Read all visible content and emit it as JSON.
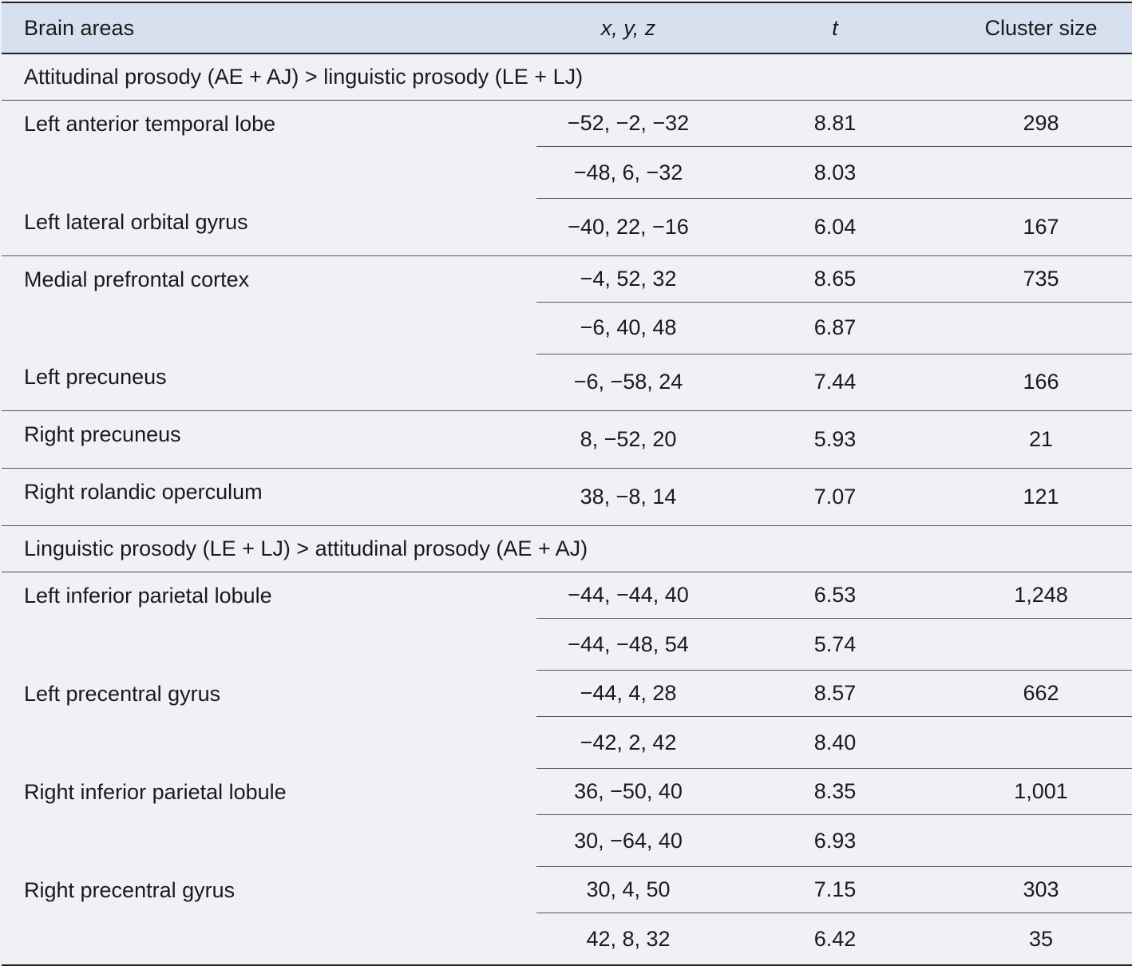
{
  "header": {
    "area": "Brain areas",
    "coords": "x, y, z",
    "t": "t",
    "cluster": "Cluster size"
  },
  "sections": [
    {
      "title": "Attitudinal prosody (AE + AJ) > linguistic prosody (LE + LJ)",
      "rows": [
        {
          "area": "Left anterior temporal lobe",
          "peaks": [
            {
              "coords": "−52, −2, −32",
              "t": "8.81",
              "cluster": "298"
            },
            {
              "coords": "−48, 6, −32",
              "t": "8.03",
              "cluster": ""
            }
          ]
        },
        {
          "area": "Left lateral orbital gyrus",
          "peaks": [
            {
              "coords": "−40, 22, −16",
              "t": "6.04",
              "cluster": "167"
            }
          ]
        },
        {
          "area": "Medial prefrontal cortex",
          "peaks": [
            {
              "coords": "−4, 52, 32",
              "t": "8.65",
              "cluster": "735"
            },
            {
              "coords": "−6, 40, 48",
              "t": "6.87",
              "cluster": ""
            }
          ]
        },
        {
          "area": "Left precuneus",
          "peaks": [
            {
              "coords": "−6, −58, 24",
              "t": "7.44",
              "cluster": "166"
            }
          ]
        },
        {
          "area": "Right precuneus",
          "peaks": [
            {
              "coords": "8, −52, 20",
              "t": "5.93",
              "cluster": "21"
            }
          ]
        },
        {
          "area": "Right rolandic operculum",
          "peaks": [
            {
              "coords": "38, −8, 14",
              "t": "7.07",
              "cluster": "121"
            }
          ]
        }
      ]
    },
    {
      "title": "Linguistic prosody (LE + LJ) > attitudinal prosody (AE + AJ)",
      "rows": [
        {
          "area": "Left inferior parietal lobule",
          "peaks": [
            {
              "coords": "−44, −44, 40",
              "t": "6.53",
              "cluster": "1,248"
            },
            {
              "coords": "−44, −48, 54",
              "t": "5.74",
              "cluster": ""
            }
          ]
        },
        {
          "area": "Left precentral gyrus",
          "peaks": [
            {
              "coords": "−44, 4, 28",
              "t": "8.57",
              "cluster": "662"
            },
            {
              "coords": "−42, 2, 42",
              "t": "8.40",
              "cluster": ""
            }
          ]
        },
        {
          "area": "Right inferior parietal lobule",
          "peaks": [
            {
              "coords": "36, −50, 40",
              "t": "8.35",
              "cluster": "1,001"
            },
            {
              "coords": "30, −64, 40",
              "t": "6.93",
              "cluster": ""
            }
          ]
        },
        {
          "area": "Right precentral gyrus",
          "peaks": [
            {
              "coords": "30, 4, 50",
              "t": "7.15",
              "cluster": "303"
            },
            {
              "coords": "42, 8, 32",
              "t": "6.42",
              "cluster": "35"
            }
          ]
        }
      ]
    }
  ]
}
